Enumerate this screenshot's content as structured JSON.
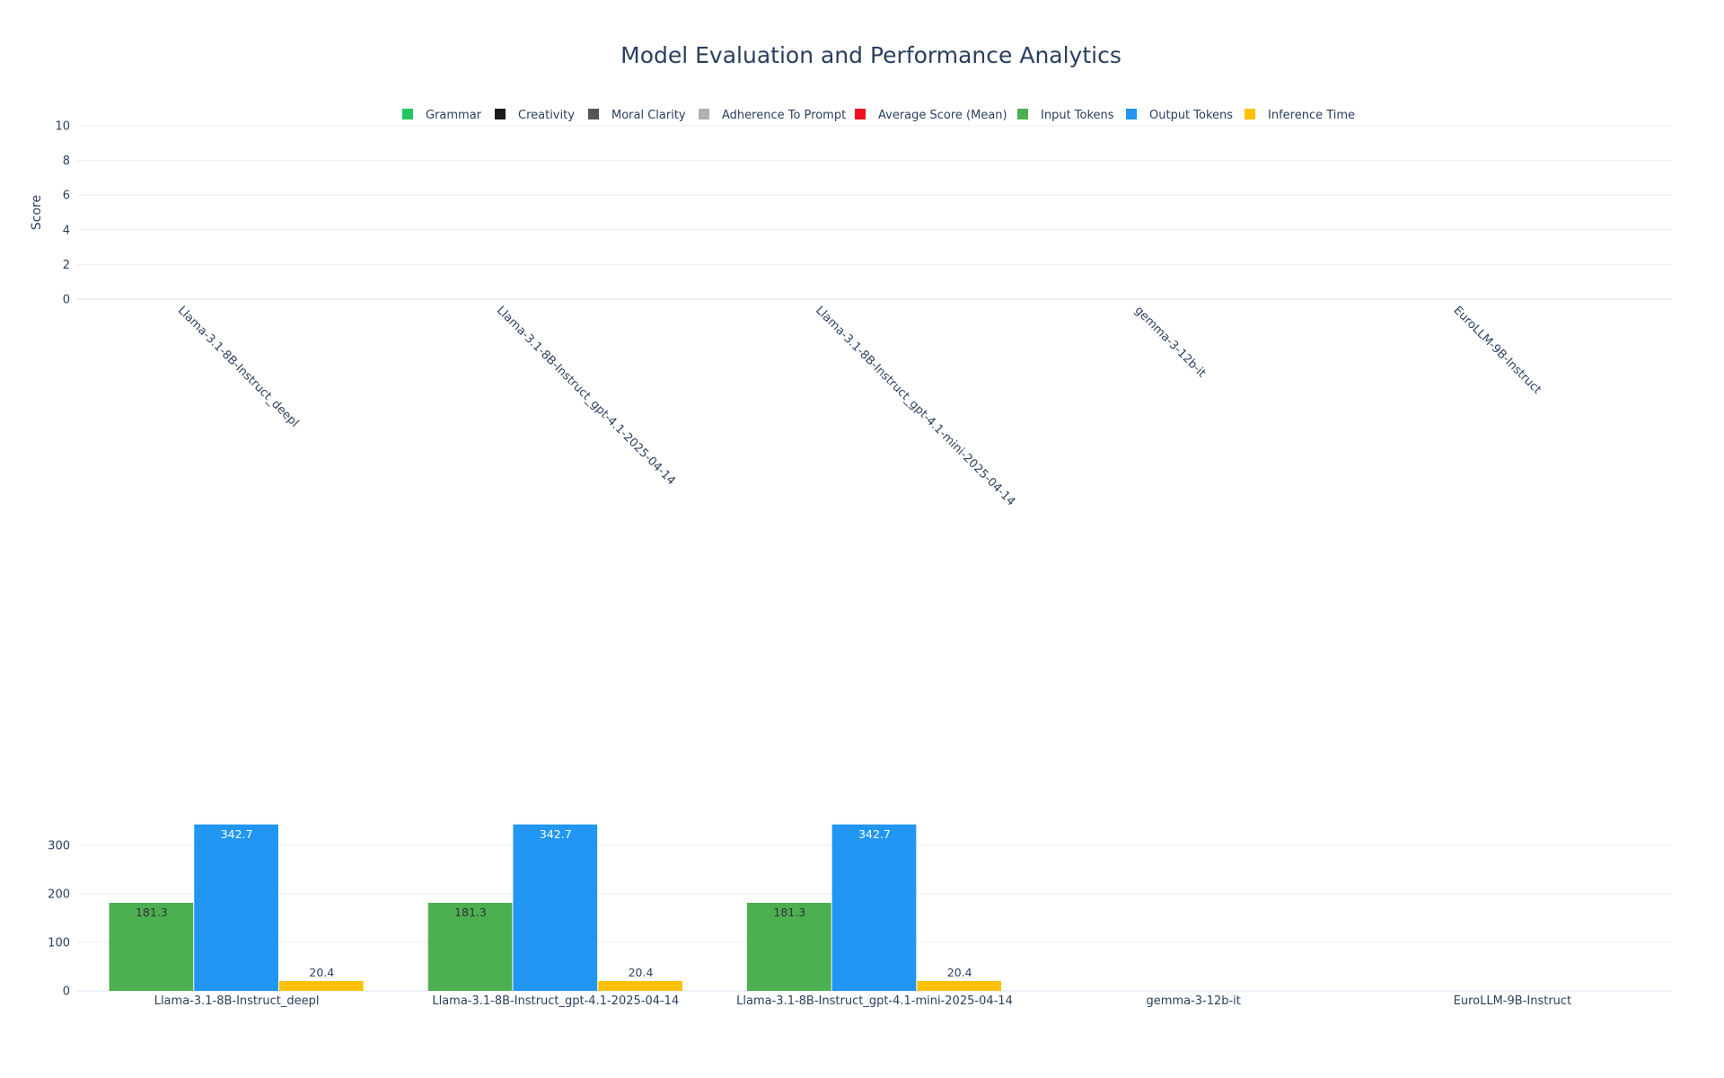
{
  "title": "Model Evaluation and Performance Analytics",
  "legend": [
    {
      "name": "Grammar",
      "color": "#22c55e"
    },
    {
      "name": "Creativity",
      "color": "#1a1a1a"
    },
    {
      "name": "Moral Clarity",
      "color": "#555555"
    },
    {
      "name": "Adherence To Prompt",
      "color": "#b0b0b0"
    },
    {
      "name": "Average Score (Mean)",
      "color": "#f01020"
    },
    {
      "name": "Input Tokens",
      "color": "#4caf50"
    },
    {
      "name": "Output Tokens",
      "color": "#2196f3"
    },
    {
      "name": "Inference Time",
      "color": "#ffc107"
    }
  ],
  "chart_data": [
    {
      "type": "bar",
      "title": "",
      "ylabel": "Score",
      "xlabel": "",
      "ylim": [
        0,
        10
      ],
      "yticks": [
        0,
        2,
        4,
        6,
        8,
        10
      ],
      "grid": true,
      "categories": [
        "Llama-3.1-8B-Instruct_deepl",
        "Llama-3.1-8B-Instruct_gpt-4.1-2025-04-14",
        "Llama-3.1-8B-Instruct_gpt-4.1-mini-2025-04-14",
        "gemma-3-12b-it",
        "EuroLLM-9B-Instruct"
      ],
      "series": [
        {
          "name": "Grammar",
          "values": [
            0,
            0,
            0,
            0,
            0
          ]
        },
        {
          "name": "Creativity",
          "values": [
            0,
            0,
            0,
            0,
            0
          ]
        },
        {
          "name": "Moral Clarity",
          "values": [
            0,
            0,
            0,
            0,
            0
          ]
        },
        {
          "name": "Adherence To Prompt",
          "values": [
            0,
            0,
            0,
            0,
            0
          ]
        },
        {
          "name": "Average Score (Mean)",
          "values": [
            0,
            0,
            0,
            0,
            0
          ]
        }
      ]
    },
    {
      "type": "bar",
      "title": "",
      "ylabel": "",
      "xlabel": "",
      "ylim": [
        0,
        370
      ],
      "yticks": [
        0,
        100,
        200,
        300
      ],
      "grid": true,
      "categories": [
        "Llama-3.1-8B-Instruct_deepl",
        "Llama-3.1-8B-Instruct_gpt-4.1-2025-04-14",
        "Llama-3.1-8B-Instruct_gpt-4.1-mini-2025-04-14",
        "gemma-3-12b-it",
        "EuroLLM-9B-Instruct"
      ],
      "series": [
        {
          "name": "Input Tokens",
          "color": "#4caf50",
          "values": [
            181.3,
            181.3,
            181.3,
            null,
            null
          ],
          "labels": [
            "181.3",
            "181.3",
            "181.3",
            "",
            ""
          ],
          "label_color": "#333333"
        },
        {
          "name": "Output Tokens",
          "color": "#2196f3",
          "values": [
            342.7,
            342.7,
            342.7,
            null,
            null
          ],
          "labels": [
            "342.7",
            "342.7",
            "342.7",
            "",
            ""
          ],
          "label_color": "#ffffff"
        },
        {
          "name": "Inference Time",
          "color": "#ffc107",
          "values": [
            20.4,
            20.4,
            20.4,
            null,
            null
          ],
          "labels": [
            "20.4",
            "20.4",
            "20.4",
            "",
            ""
          ],
          "label_color": "#2a3f5f"
        }
      ]
    }
  ]
}
